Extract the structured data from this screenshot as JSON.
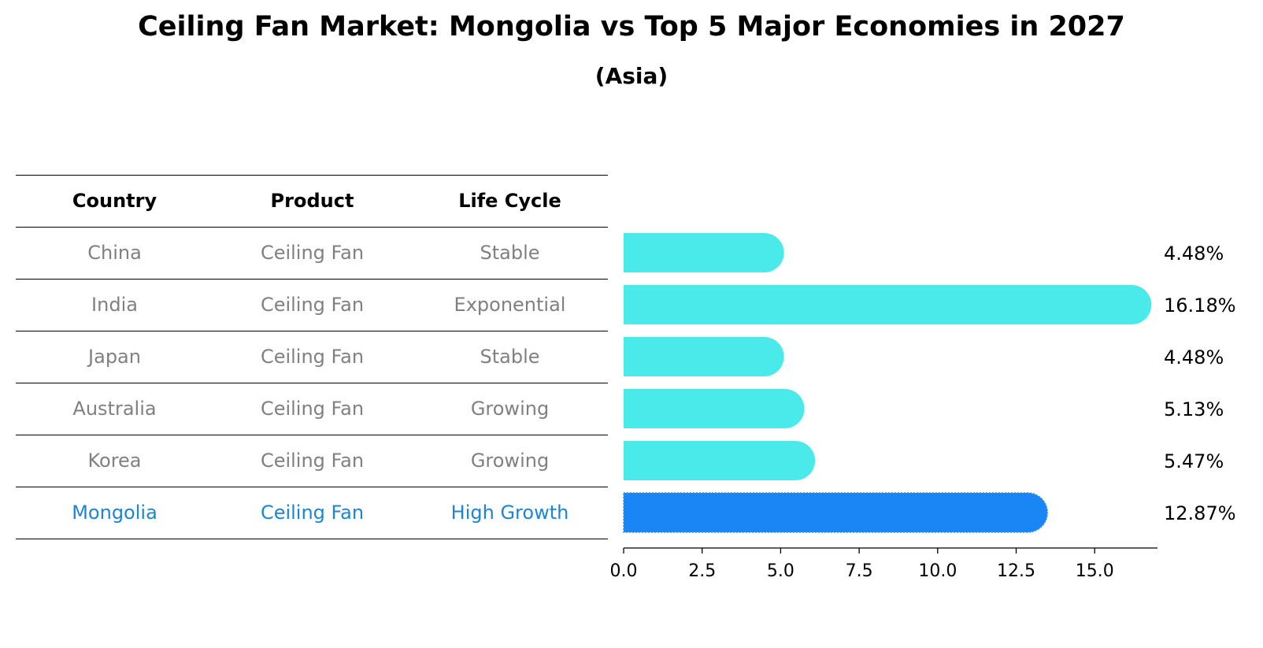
{
  "title": "Ceiling Fan Market: Mongolia vs Top 5 Major Economies in 2027",
  "subtitle": "(Asia)",
  "table": {
    "headers": [
      "Country",
      "Product",
      "Life Cycle"
    ],
    "rows": [
      {
        "country": "China",
        "product": "Ceiling Fan",
        "life_cycle": "Stable",
        "highlight": false
      },
      {
        "country": "India",
        "product": "Ceiling Fan",
        "life_cycle": "Exponential",
        "highlight": false
      },
      {
        "country": "Japan",
        "product": "Ceiling Fan",
        "life_cycle": "Stable",
        "highlight": false
      },
      {
        "country": "Australia",
        "product": "Ceiling Fan",
        "life_cycle": "Growing",
        "highlight": false
      },
      {
        "country": "Korea",
        "product": "Ceiling Fan",
        "life_cycle": "Growing",
        "highlight": false
      },
      {
        "country": "Mongolia",
        "product": "Ceiling Fan",
        "life_cycle": "High Growth",
        "highlight": true
      }
    ]
  },
  "colors": {
    "bar": "#4beaea",
    "highlight_bar": "#1a86f5",
    "muted_text": "#808080",
    "highlight_text": "#1a86d6"
  },
  "chart_data": {
    "type": "bar",
    "orientation": "horizontal",
    "categories": [
      "China",
      "India",
      "Japan",
      "Australia",
      "Korea",
      "Mongolia"
    ],
    "values": [
      4.48,
      16.18,
      4.48,
      5.13,
      5.47,
      12.87
    ],
    "value_labels": [
      "4.48%",
      "16.18%",
      "4.48%",
      "5.13%",
      "5.47%",
      "12.87%"
    ],
    "highlight_index": 5,
    "xlim": [
      0,
      17
    ],
    "xticks": [
      0.0,
      2.5,
      5.0,
      7.5,
      10.0,
      12.5,
      15.0
    ],
    "xtick_labels": [
      "0.0",
      "2.5",
      "5.0",
      "7.5",
      "10.0",
      "12.5",
      "15.0"
    ],
    "xlabel": "",
    "ylabel": "",
    "grid": false
  }
}
